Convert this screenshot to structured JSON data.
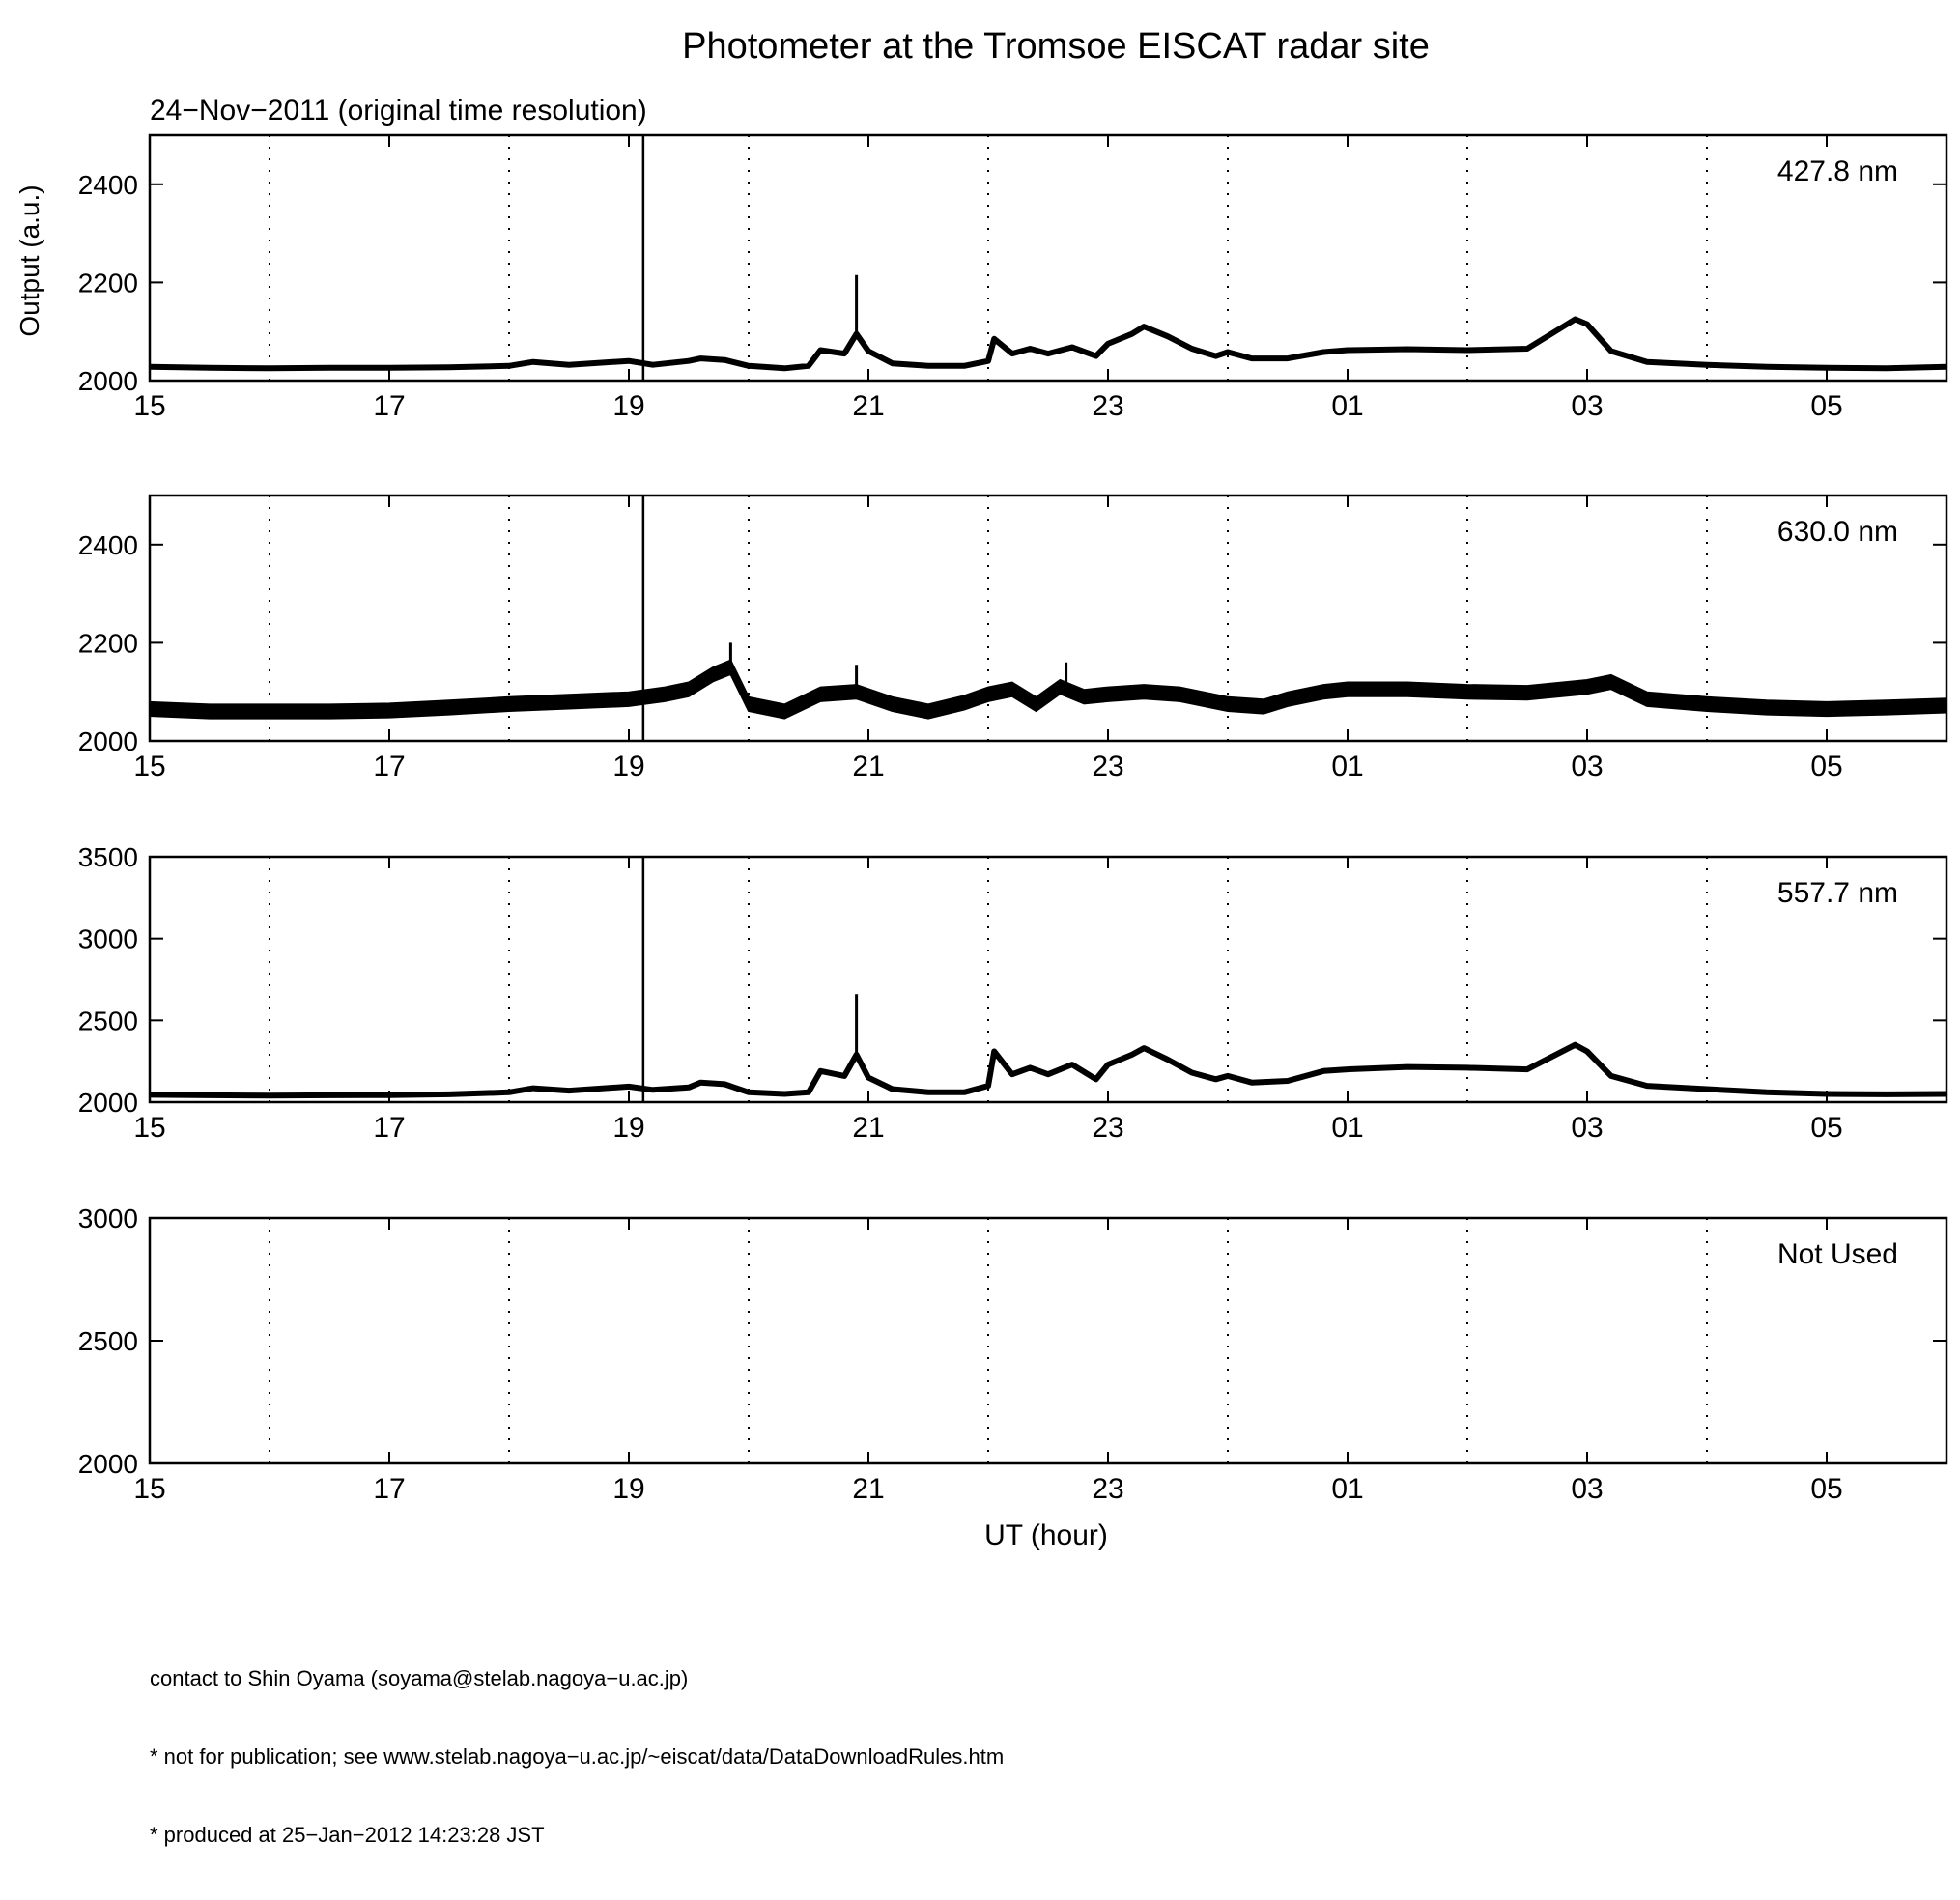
{
  "figure": {
    "title": "Photometer at the Tromsoe EISCAT radar site",
    "subtitle": "24−Nov−2011 (original time resolution)",
    "xlabel": "UT (hour)",
    "ylabel": "Output (a.u.)",
    "footer": [
      "contact to Shin Oyama (soyama@stelab.nagoya−u.ac.jp)",
      "* not for publication; see www.stelab.nagoya−u.ac.jp/~eiscat/data/DataDownloadRules.htm",
      "* produced at 25−Jan−2012 14:23:28 JST"
    ]
  },
  "chart_data": [
    {
      "type": "line",
      "label": "427.8 nm",
      "x_range_hours_ut": [
        15,
        30
      ],
      "xticks": [
        "15",
        "17",
        "19",
        "21",
        "23",
        "01",
        "03",
        "05"
      ],
      "ylim": [
        2000,
        2500
      ],
      "yticks": [
        2000,
        2200,
        2400
      ],
      "grid": "dotted vertical at each hour",
      "vertical_marker_hour": 19.12,
      "x": [
        15,
        15.5,
        16,
        16.5,
        17,
        17.5,
        18,
        18.2,
        18.5,
        19,
        19.2,
        19.5,
        19.6,
        19.8,
        20,
        20.3,
        20.5,
        20.6,
        20.8,
        20.9,
        21,
        21.2,
        21.5,
        21.8,
        22,
        22.05,
        22.2,
        22.35,
        22.5,
        22.7,
        22.9,
        23,
        23.2,
        23.3,
        23.5,
        23.7,
        23.9,
        24,
        24.2,
        24.5,
        24.8,
        25,
        25.5,
        26,
        26.5,
        26.9,
        27,
        27.2,
        27.5,
        28,
        28.5,
        29,
        29.5,
        30
      ],
      "y": [
        2028,
        2026,
        2025,
        2026,
        2026,
        2027,
        2030,
        2038,
        2032,
        2040,
        2032,
        2040,
        2045,
        2042,
        2030,
        2025,
        2030,
        2062,
        2055,
        2095,
        2060,
        2035,
        2030,
        2030,
        2040,
        2085,
        2055,
        2065,
        2055,
        2068,
        2050,
        2075,
        2095,
        2110,
        2090,
        2065,
        2050,
        2058,
        2045,
        2045,
        2058,
        2062,
        2064,
        2062,
        2065,
        2125,
        2115,
        2060,
        2038,
        2032,
        2028,
        2026,
        2025,
        2028
      ],
      "spikes": [
        {
          "x": 20.9,
          "y": 2215
        }
      ]
    },
    {
      "type": "line",
      "label": "630.0 nm",
      "x_range_hours_ut": [
        15,
        30
      ],
      "xticks": [
        "15",
        "17",
        "19",
        "21",
        "23",
        "01",
        "03",
        "05"
      ],
      "ylim": [
        2000,
        2500
      ],
      "yticks": [
        2000,
        2200,
        2400
      ],
      "grid": "dotted vertical at each hour",
      "vertical_marker_hour": 19.12,
      "x": [
        15,
        15.5,
        16,
        16.5,
        17,
        17.5,
        18,
        18.5,
        19,
        19.3,
        19.5,
        19.7,
        19.85,
        20,
        20.3,
        20.6,
        20.9,
        21.2,
        21.5,
        21.8,
        22,
        22.2,
        22.4,
        22.6,
        22.8,
        23,
        23.3,
        23.6,
        23.9,
        24,
        24.3,
        24.5,
        24.8,
        25,
        25.5,
        26,
        26.5,
        27,
        27.2,
        27.5,
        28,
        28.5,
        29,
        29.5,
        30
      ],
      "y": [
        2065,
        2060,
        2060,
        2060,
        2062,
        2068,
        2075,
        2080,
        2085,
        2095,
        2105,
        2135,
        2150,
        2075,
        2060,
        2095,
        2100,
        2075,
        2060,
        2078,
        2095,
        2105,
        2075,
        2110,
        2090,
        2095,
        2100,
        2095,
        2080,
        2075,
        2070,
        2085,
        2100,
        2105,
        2105,
        2100,
        2098,
        2110,
        2120,
        2085,
        2075,
        2068,
        2065,
        2068,
        2072
      ],
      "band_halfwidth": 14,
      "spikes": [
        {
          "x": 19.85,
          "y": 2200
        },
        {
          "x": 20.9,
          "y": 2155
        },
        {
          "x": 22.65,
          "y": 2160
        }
      ]
    },
    {
      "type": "line",
      "label": "557.7 nm",
      "x_range_hours_ut": [
        15,
        30
      ],
      "xticks": [
        "15",
        "17",
        "19",
        "21",
        "23",
        "01",
        "03",
        "05"
      ],
      "ylim": [
        2000,
        3500
      ],
      "yticks": [
        2000,
        2500,
        3000,
        3500
      ],
      "grid": "dotted vertical at each hour",
      "vertical_marker_hour": 19.12,
      "x": [
        15,
        15.5,
        16,
        16.5,
        17,
        17.5,
        18,
        18.2,
        18.5,
        19,
        19.2,
        19.5,
        19.6,
        19.8,
        20,
        20.3,
        20.5,
        20.6,
        20.8,
        20.9,
        21,
        21.2,
        21.5,
        21.8,
        22,
        22.05,
        22.2,
        22.35,
        22.5,
        22.7,
        22.9,
        23,
        23.2,
        23.3,
        23.5,
        23.7,
        23.9,
        24,
        24.2,
        24.5,
        24.8,
        25,
        25.5,
        26,
        26.5,
        26.9,
        27,
        27.2,
        27.5,
        28,
        28.5,
        29,
        29.5,
        30
      ],
      "y": [
        2045,
        2042,
        2040,
        2042,
        2043,
        2048,
        2060,
        2085,
        2070,
        2095,
        2075,
        2090,
        2120,
        2110,
        2060,
        2050,
        2060,
        2190,
        2160,
        2290,
        2150,
        2080,
        2060,
        2060,
        2100,
        2310,
        2170,
        2210,
        2170,
        2230,
        2140,
        2230,
        2290,
        2330,
        2260,
        2180,
        2140,
        2160,
        2120,
        2130,
        2190,
        2200,
        2215,
        2210,
        2200,
        2350,
        2310,
        2160,
        2100,
        2080,
        2060,
        2050,
        2048,
        2050
      ],
      "spikes": [
        {
          "x": 20.9,
          "y": 2660
        }
      ]
    },
    {
      "type": "line",
      "label": "Not Used",
      "x_range_hours_ut": [
        15,
        30
      ],
      "xticks": [
        "15",
        "17",
        "19",
        "21",
        "23",
        "01",
        "03",
        "05"
      ],
      "ylim": [
        2000,
        3000
      ],
      "yticks": [
        2000,
        2500,
        3000
      ],
      "grid": "dotted vertical at each hour",
      "x": [],
      "y": []
    }
  ]
}
